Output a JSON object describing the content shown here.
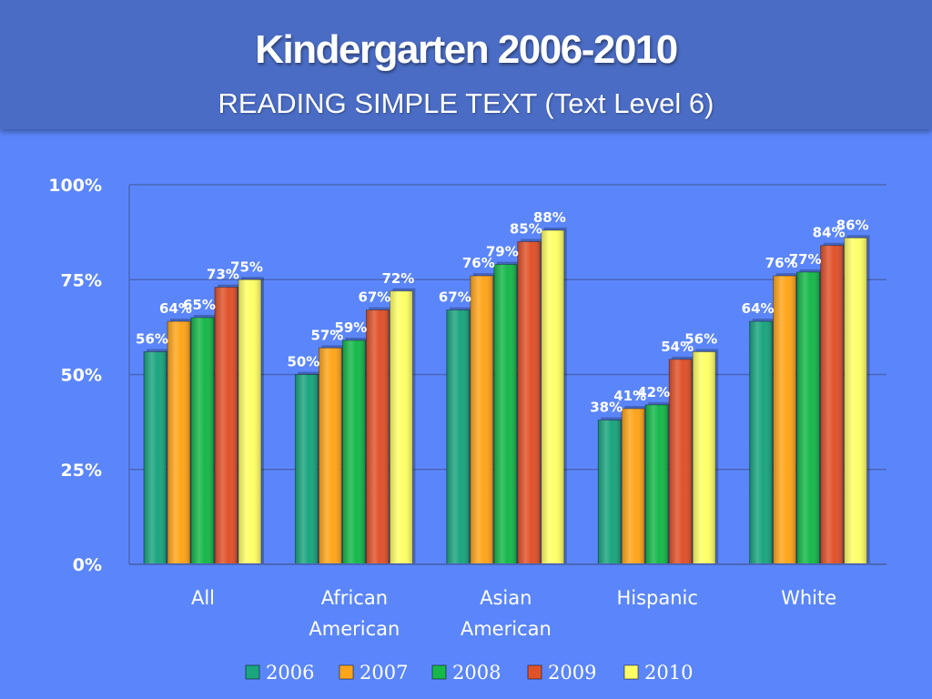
{
  "header": {
    "title": "Kindergarten 2006-2010",
    "subtitle": "READING SIMPLE TEXT (Text Level 6)"
  },
  "chart_data": {
    "type": "bar",
    "title": "Kindergarten 2006-2010",
    "subtitle": "READING SIMPLE TEXT (Text Level 6)",
    "categories": [
      [
        "All"
      ],
      [
        "African",
        "American"
      ],
      [
        "Asian",
        "American"
      ],
      [
        "Hispanic"
      ],
      [
        "White"
      ]
    ],
    "series": [
      {
        "name": "2006",
        "color": "#1aa57e",
        "values": [
          56,
          50,
          67,
          38,
          64
        ]
      },
      {
        "name": "2007",
        "color": "#ffa51a",
        "values": [
          64,
          57,
          76,
          41,
          76
        ]
      },
      {
        "name": "2008",
        "color": "#16b84a",
        "values": [
          65,
          59,
          79,
          42,
          77
        ]
      },
      {
        "name": "2009",
        "color": "#e0522a",
        "values": [
          73,
          67,
          85,
          54,
          84
        ]
      },
      {
        "name": "2010",
        "color": "#ffff66",
        "values": [
          75,
          72,
          88,
          56,
          86
        ]
      }
    ],
    "value_suffix": "%",
    "ylim": [
      0,
      100
    ],
    "yticks": [
      0,
      25,
      50,
      75,
      100
    ],
    "ytick_labels": [
      "0%",
      "25%",
      "50%",
      "75%",
      "100%"
    ],
    "grid": true,
    "legend": "bottom",
    "data_labels": true
  }
}
